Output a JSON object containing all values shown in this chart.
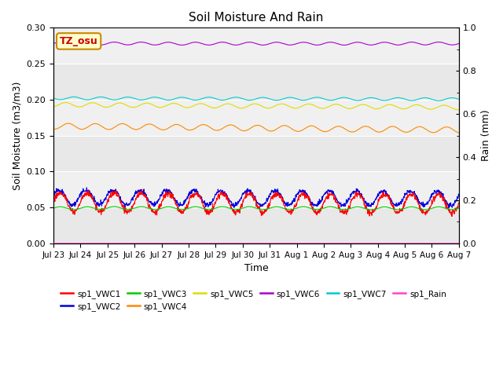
{
  "title": "Soil Moisture And Rain",
  "xlabel": "Time",
  "ylabel_left": "Soil Moisture (m3/m3)",
  "ylabel_right": "Rain (mm)",
  "annotation_text": "TZ_osu",
  "annotation_color": "#cc0000",
  "annotation_bg": "#ffffcc",
  "annotation_border": "#cc8800",
  "ylim_left": [
    0.0,
    0.3
  ],
  "ylim_right": [
    0.0,
    1.0
  ],
  "xtick_labels": [
    "Jul 23",
    "Jul 24",
    "Jul 25",
    "Jul 26",
    "Jul 27",
    "Jul 28",
    "Jul 29",
    "Jul 30",
    "Jul 31",
    "Aug 1",
    "Aug 2",
    "Aug 3",
    "Aug 4",
    "Aug 5",
    "Aug 6",
    "Aug 7"
  ],
  "bg_color": "#e8e8e8",
  "bg_light": "#f0f0f0",
  "series": {
    "VWC1": {
      "color": "#ff0000",
      "base": 0.057,
      "amp": 0.013,
      "period": 1.0,
      "phase": 0.0,
      "trend": -0.00015,
      "sharp": true
    },
    "VWC2": {
      "color": "#0000dd",
      "base": 0.064,
      "amp": 0.01,
      "period": 1.0,
      "phase": -0.05,
      "trend": -0.0001,
      "sharp": true
    },
    "VWC3": {
      "color": "#00cc00",
      "base": 0.049,
      "amp": 0.002,
      "period": 1.0,
      "phase": 0.0,
      "trend": 0.0,
      "sharp": false
    },
    "VWC4": {
      "color": "#ff8800",
      "base": 0.163,
      "amp": 0.004,
      "period": 1.0,
      "phase": 0.3,
      "trend": -0.00035,
      "sharp": false
    },
    "VWC5": {
      "color": "#dddd00",
      "base": 0.193,
      "amp": 0.003,
      "period": 1.0,
      "phase": 0.2,
      "trend": -0.00025,
      "sharp": false
    },
    "VWC6": {
      "color": "#aa00cc",
      "base": 0.278,
      "amp": 0.002,
      "period": 1.0,
      "phase": 0.0,
      "trend": 0.0,
      "sharp": false
    },
    "VWC7": {
      "color": "#00cccc",
      "base": 0.202,
      "amp": 0.002,
      "period": 1.0,
      "phase": 0.5,
      "trend": -0.0001,
      "sharp": false
    },
    "Rain": {
      "color": "#ff44cc",
      "base": 0.0005,
      "amp": 0.0,
      "period": 1.0,
      "phase": 0.0,
      "trend": 0.0,
      "sharp": false
    }
  },
  "legend_entries": [
    {
      "label": "sp1_VWC1",
      "color": "#ff0000"
    },
    {
      "label": "sp1_VWC2",
      "color": "#0000dd"
    },
    {
      "label": "sp1_VWC3",
      "color": "#00cc00"
    },
    {
      "label": "sp1_VWC4",
      "color": "#ff8800"
    },
    {
      "label": "sp1_VWC5",
      "color": "#dddd00"
    },
    {
      "label": "sp1_VWC6",
      "color": "#aa00cc"
    },
    {
      "label": "sp1_VWC7",
      "color": "#00cccc"
    },
    {
      "label": "sp1_Rain",
      "color": "#ff44cc"
    }
  ],
  "n_days": 15,
  "pts_per_day": 96
}
